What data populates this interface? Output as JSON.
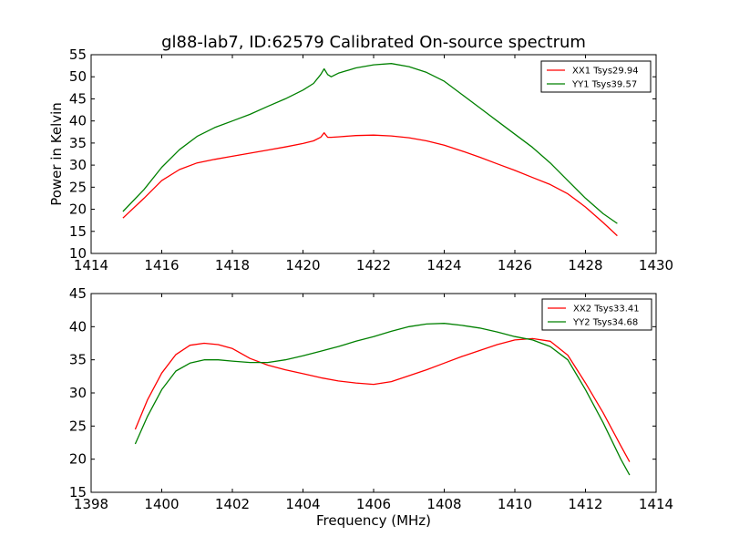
{
  "chart_data": [
    {
      "type": "line",
      "title": "gl88-lab7, ID:62579 Calibrated On-source spectrum",
      "xlabel": "",
      "ylabel": "Power in Kelvin",
      "xlim": [
        1414,
        1430
      ],
      "ylim": [
        10,
        55
      ],
      "xticks": [
        1414,
        1416,
        1418,
        1420,
        1422,
        1424,
        1426,
        1428,
        1430
      ],
      "yticks": [
        10,
        15,
        20,
        25,
        30,
        35,
        40,
        45,
        50,
        55
      ],
      "legend_position": "upper-right",
      "series": [
        {
          "name": "XX1 Tsys29.94",
          "color": "#ff0000",
          "x": [
            1414.9,
            1415.5,
            1416.0,
            1416.5,
            1417.0,
            1417.5,
            1418.0,
            1418.5,
            1419.0,
            1419.5,
            1420.0,
            1420.3,
            1420.5,
            1420.6,
            1420.7,
            1420.8,
            1421.0,
            1421.5,
            1422.0,
            1422.5,
            1423.0,
            1423.5,
            1424.0,
            1424.5,
            1425.0,
            1425.5,
            1426.0,
            1426.5,
            1427.0,
            1427.5,
            1428.0,
            1428.5,
            1428.9
          ],
          "y": [
            18.0,
            22.5,
            26.5,
            29.0,
            30.5,
            31.3,
            32.0,
            32.7,
            33.4,
            34.1,
            34.9,
            35.5,
            36.3,
            37.3,
            36.3,
            36.3,
            36.4,
            36.7,
            36.8,
            36.6,
            36.2,
            35.5,
            34.5,
            33.2,
            31.8,
            30.3,
            28.8,
            27.2,
            25.6,
            23.5,
            20.5,
            17.0,
            14.0
          ]
        },
        {
          "name": "YY1 Tsys39.57",
          "color": "#008000",
          "x": [
            1414.9,
            1415.5,
            1416.0,
            1416.5,
            1417.0,
            1417.5,
            1418.0,
            1418.5,
            1419.0,
            1419.5,
            1420.0,
            1420.3,
            1420.5,
            1420.6,
            1420.7,
            1420.8,
            1421.0,
            1421.5,
            1422.0,
            1422.5,
            1423.0,
            1423.5,
            1424.0,
            1424.5,
            1425.0,
            1425.5,
            1426.0,
            1426.5,
            1427.0,
            1427.5,
            1428.0,
            1428.5,
            1428.9
          ],
          "y": [
            19.5,
            24.5,
            29.5,
            33.5,
            36.5,
            38.5,
            40.0,
            41.5,
            43.3,
            45.0,
            47.0,
            48.5,
            50.5,
            51.8,
            50.5,
            50.0,
            50.8,
            52.0,
            52.7,
            53.0,
            52.3,
            51.0,
            49.0,
            46.0,
            43.0,
            40.0,
            37.0,
            34.0,
            30.5,
            26.5,
            22.5,
            19.0,
            16.8
          ]
        }
      ]
    },
    {
      "type": "line",
      "title": "",
      "xlabel": "Frequency (MHz)",
      "ylabel": "",
      "xlim": [
        1398,
        1414
      ],
      "ylim": [
        15,
        45
      ],
      "xticks": [
        1398,
        1400,
        1402,
        1404,
        1406,
        1408,
        1410,
        1412,
        1414
      ],
      "yticks": [
        15,
        20,
        25,
        30,
        35,
        40,
        45
      ],
      "legend_position": "upper-right",
      "series": [
        {
          "name": "XX2 Tsys33.41",
          "color": "#ff0000",
          "x": [
            1399.25,
            1399.6,
            1400.0,
            1400.4,
            1400.8,
            1401.2,
            1401.6,
            1402.0,
            1402.5,
            1403.0,
            1403.5,
            1404.0,
            1404.5,
            1405.0,
            1405.5,
            1406.0,
            1406.5,
            1407.0,
            1407.5,
            1408.0,
            1408.5,
            1409.0,
            1409.5,
            1410.0,
            1410.5,
            1411.0,
            1411.5,
            1412.0,
            1412.5,
            1413.0,
            1413.25
          ],
          "y": [
            24.5,
            29.0,
            33.0,
            35.8,
            37.2,
            37.5,
            37.3,
            36.7,
            35.2,
            34.2,
            33.5,
            32.9,
            32.3,
            31.8,
            31.5,
            31.3,
            31.7,
            32.6,
            33.5,
            34.5,
            35.5,
            36.4,
            37.3,
            38.0,
            38.2,
            37.8,
            35.7,
            31.5,
            27.0,
            22.0,
            19.6
          ]
        },
        {
          "name": "YY2 Tsys34.68",
          "color": "#008000",
          "x": [
            1399.25,
            1399.6,
            1400.0,
            1400.4,
            1400.8,
            1401.2,
            1401.6,
            1402.0,
            1402.5,
            1403.0,
            1403.5,
            1404.0,
            1404.5,
            1405.0,
            1405.5,
            1406.0,
            1406.5,
            1407.0,
            1407.5,
            1408.0,
            1408.5,
            1409.0,
            1409.5,
            1410.0,
            1410.5,
            1411.0,
            1411.5,
            1412.0,
            1412.5,
            1413.0,
            1413.25
          ],
          "y": [
            22.3,
            26.5,
            30.5,
            33.3,
            34.5,
            35.0,
            35.0,
            34.8,
            34.6,
            34.6,
            35.0,
            35.6,
            36.3,
            37.0,
            37.8,
            38.5,
            39.3,
            40.0,
            40.4,
            40.5,
            40.2,
            39.8,
            39.2,
            38.5,
            38.0,
            37.0,
            35.0,
            30.5,
            25.5,
            20.0,
            17.6
          ]
        }
      ]
    }
  ],
  "colors": {
    "axes_frame": "#000000",
    "background": "#ffffff"
  }
}
